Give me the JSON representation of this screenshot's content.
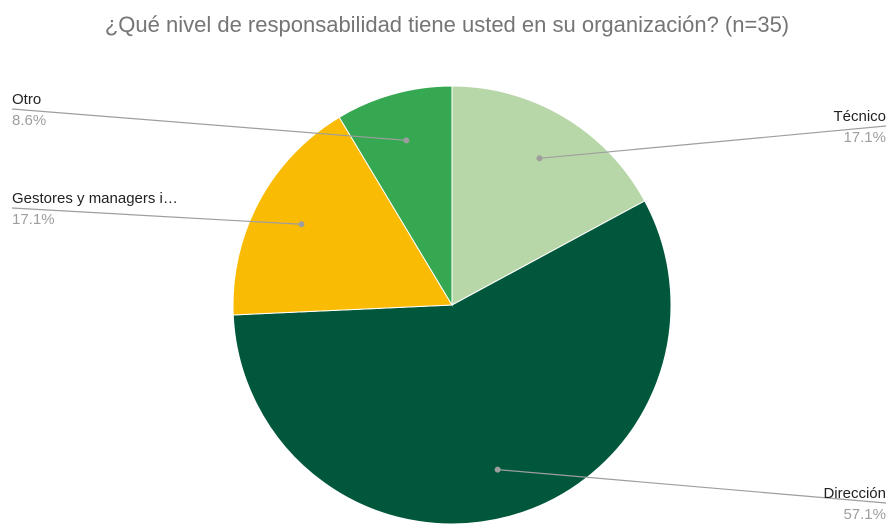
{
  "chart_data": {
    "type": "pie",
    "title": "¿Qué nivel de responsabilidad tiene usted en su organización? (n=35)",
    "slices": [
      {
        "label": "Técnico",
        "value": 17.1,
        "display": "17.1%",
        "color": "#b7d7a8"
      },
      {
        "label": "Dirección",
        "value": 57.1,
        "display": "57.1%",
        "color": "#01573b"
      },
      {
        "label": "Gestores y managers i…",
        "value": 17.1,
        "display": "17.1%",
        "color": "#fabb04"
      },
      {
        "label": "Otro",
        "value": 8.6,
        "display": "8.6%",
        "color": "#36a852"
      }
    ],
    "start_angle": "12 o'clock",
    "direction": "clockwise",
    "legend": "none (labels beside slices)"
  }
}
